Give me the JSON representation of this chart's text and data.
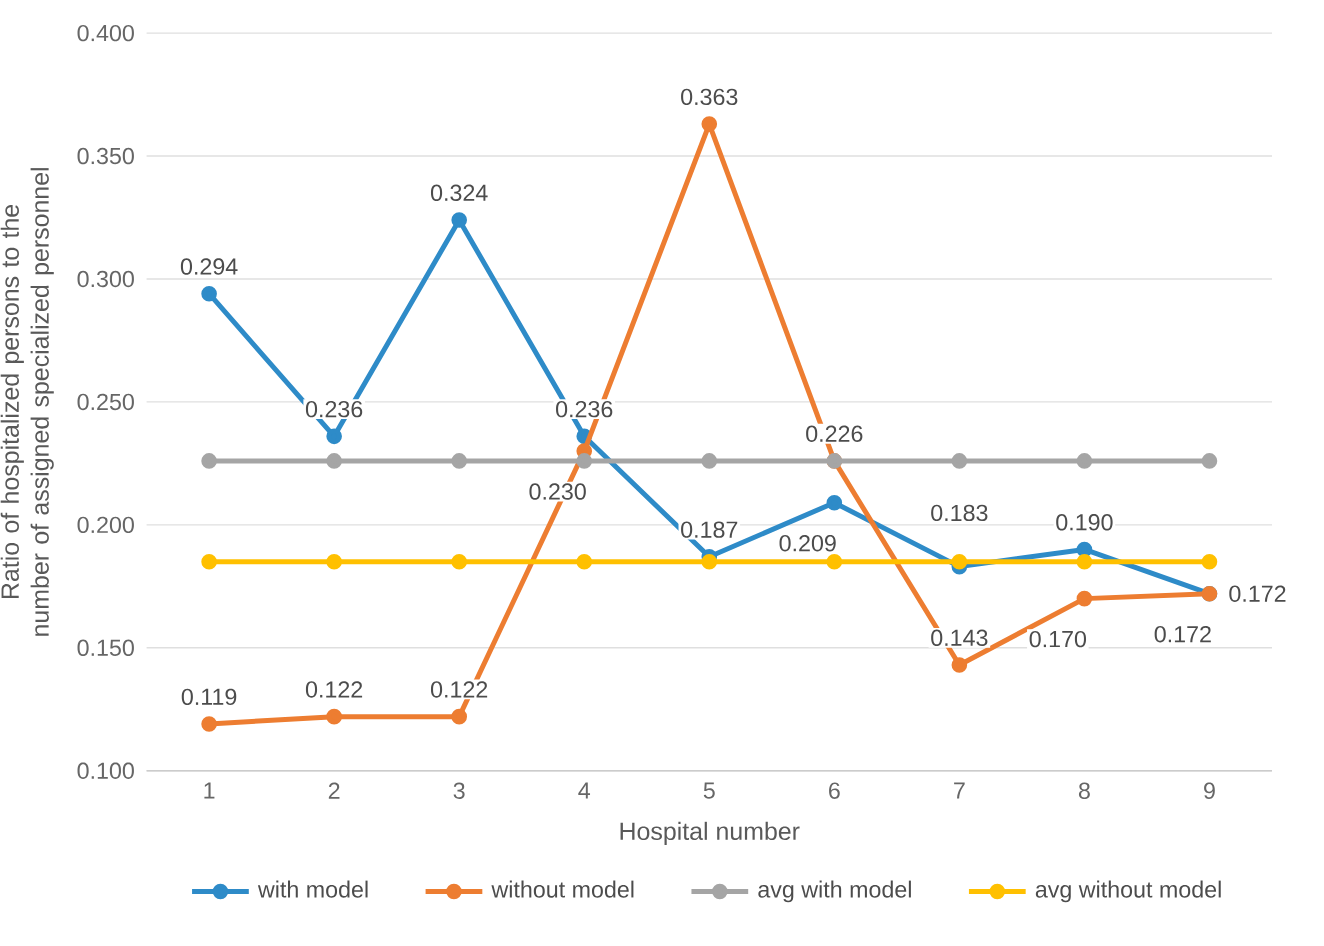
{
  "chart_data": {
    "type": "line",
    "xlabel": "Hospital number",
    "ylabel": "Ratio of hospitalized persons to the number of assigned specialized personnel",
    "categories": [
      "1",
      "2",
      "3",
      "4",
      "5",
      "6",
      "7",
      "8",
      "9"
    ],
    "series": [
      {
        "name": "with model",
        "color": "#2e8bc8",
        "values": [
          0.294,
          0.236,
          0.324,
          0.236,
          0.187,
          0.209,
          0.183,
          0.19,
          0.172
        ],
        "value_labels": [
          "0.294",
          "0.236",
          "0.324",
          "0.236",
          "0.187",
          "0.209",
          "0.183",
          "0.190",
          "0.172"
        ]
      },
      {
        "name": "without model",
        "color": "#ed7d31",
        "values": [
          0.119,
          0.122,
          0.122,
          0.23,
          0.363,
          0.226,
          0.143,
          0.17,
          0.172
        ],
        "value_labels": [
          "0.119",
          "0.122",
          "0.122",
          "0.230",
          "0.363",
          "0.226",
          "0.143",
          "0.170",
          "0.172"
        ]
      },
      {
        "name": "avg with model",
        "color": "#a5a5a5",
        "values": [
          0.226,
          0.226,
          0.226,
          0.226,
          0.226,
          0.226,
          0.226,
          0.226,
          0.226
        ]
      },
      {
        "name": "avg without model",
        "color": "#ffc000",
        "values": [
          0.185,
          0.185,
          0.185,
          0.185,
          0.185,
          0.185,
          0.185,
          0.185,
          0.185
        ]
      }
    ],
    "ylim": [
      0.1,
      0.4
    ],
    "yticks": [
      "0.100",
      "0.150",
      "0.200",
      "0.250",
      "0.300",
      "0.350",
      "0.400"
    ],
    "grid": "y",
    "legend": "bottom",
    "marker": "circle",
    "line_style": "solid"
  }
}
